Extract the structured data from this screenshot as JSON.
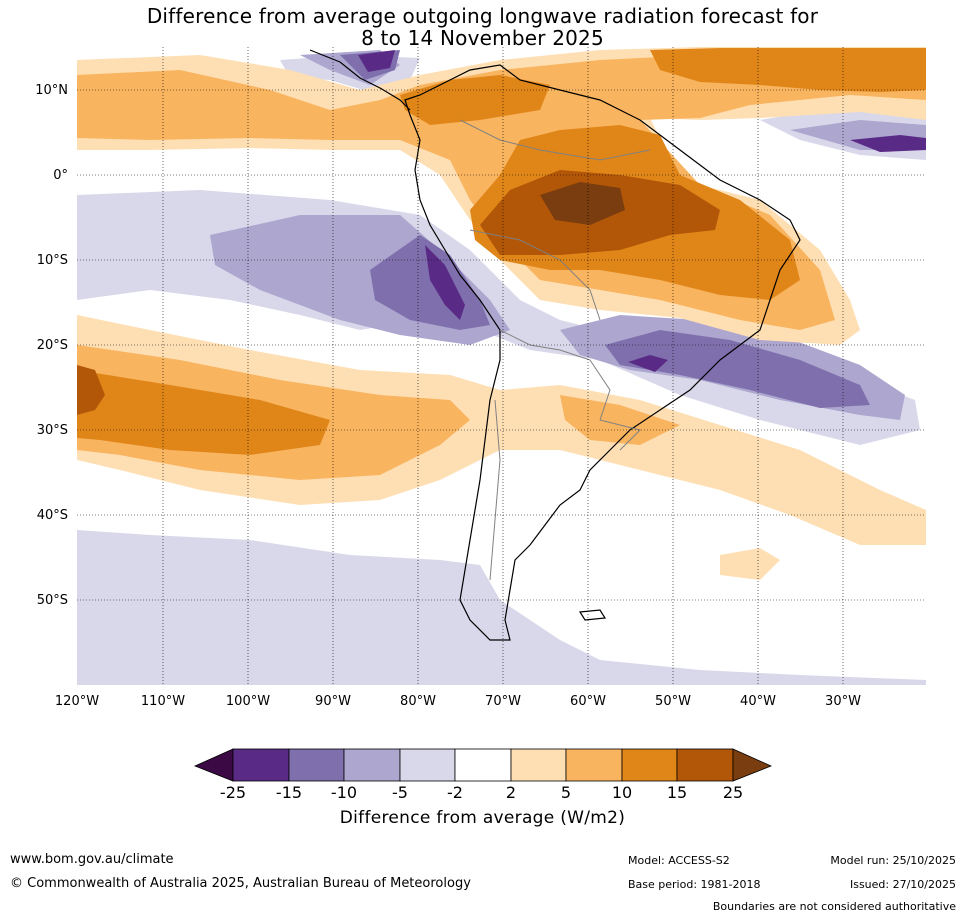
{
  "title": {
    "line1": "Difference from average outgoing longwave radiation forecast for",
    "line2": "8 to 14 November 2025"
  },
  "map": {
    "region": "South America and surrounding oceans",
    "lat_labels": [
      "10°N",
      "0°",
      "10°S",
      "20°S",
      "30°S",
      "40°S",
      "50°S"
    ],
    "lon_labels": [
      "120°W",
      "110°W",
      "100°W",
      "90°W",
      "80°W",
      "70°W",
      "60°W",
      "50°W",
      "40°W",
      "30°W"
    ],
    "gridlines": "dotted"
  },
  "colorbar": {
    "ticks": [
      "-25",
      "-15",
      "-10",
      "-5",
      "-2",
      "2",
      "5",
      "10",
      "15",
      "25"
    ],
    "colors": [
      "#3b0a45",
      "#5a2a87",
      "#7f70ad",
      "#ada6cf",
      "#d8d8ea",
      "#ffffff",
      "#fedfb3",
      "#f9b460",
      "#e08619",
      "#b25708",
      "#7a3d0f"
    ],
    "title": "Difference from average (W/m2)"
  },
  "footer": {
    "website": "www.bom.gov.au/climate",
    "copyright": "© Commonwealth of Australia 2025, Australian Bureau of Meteorology",
    "model": "Model: ACCESS-S2",
    "base_period": "Base period: 1981-2018",
    "model_run": "Model run: 25/10/2025",
    "issued": "Issued: 27/10/2025",
    "disclaimer": "Boundaries are not considered authoritative"
  }
}
